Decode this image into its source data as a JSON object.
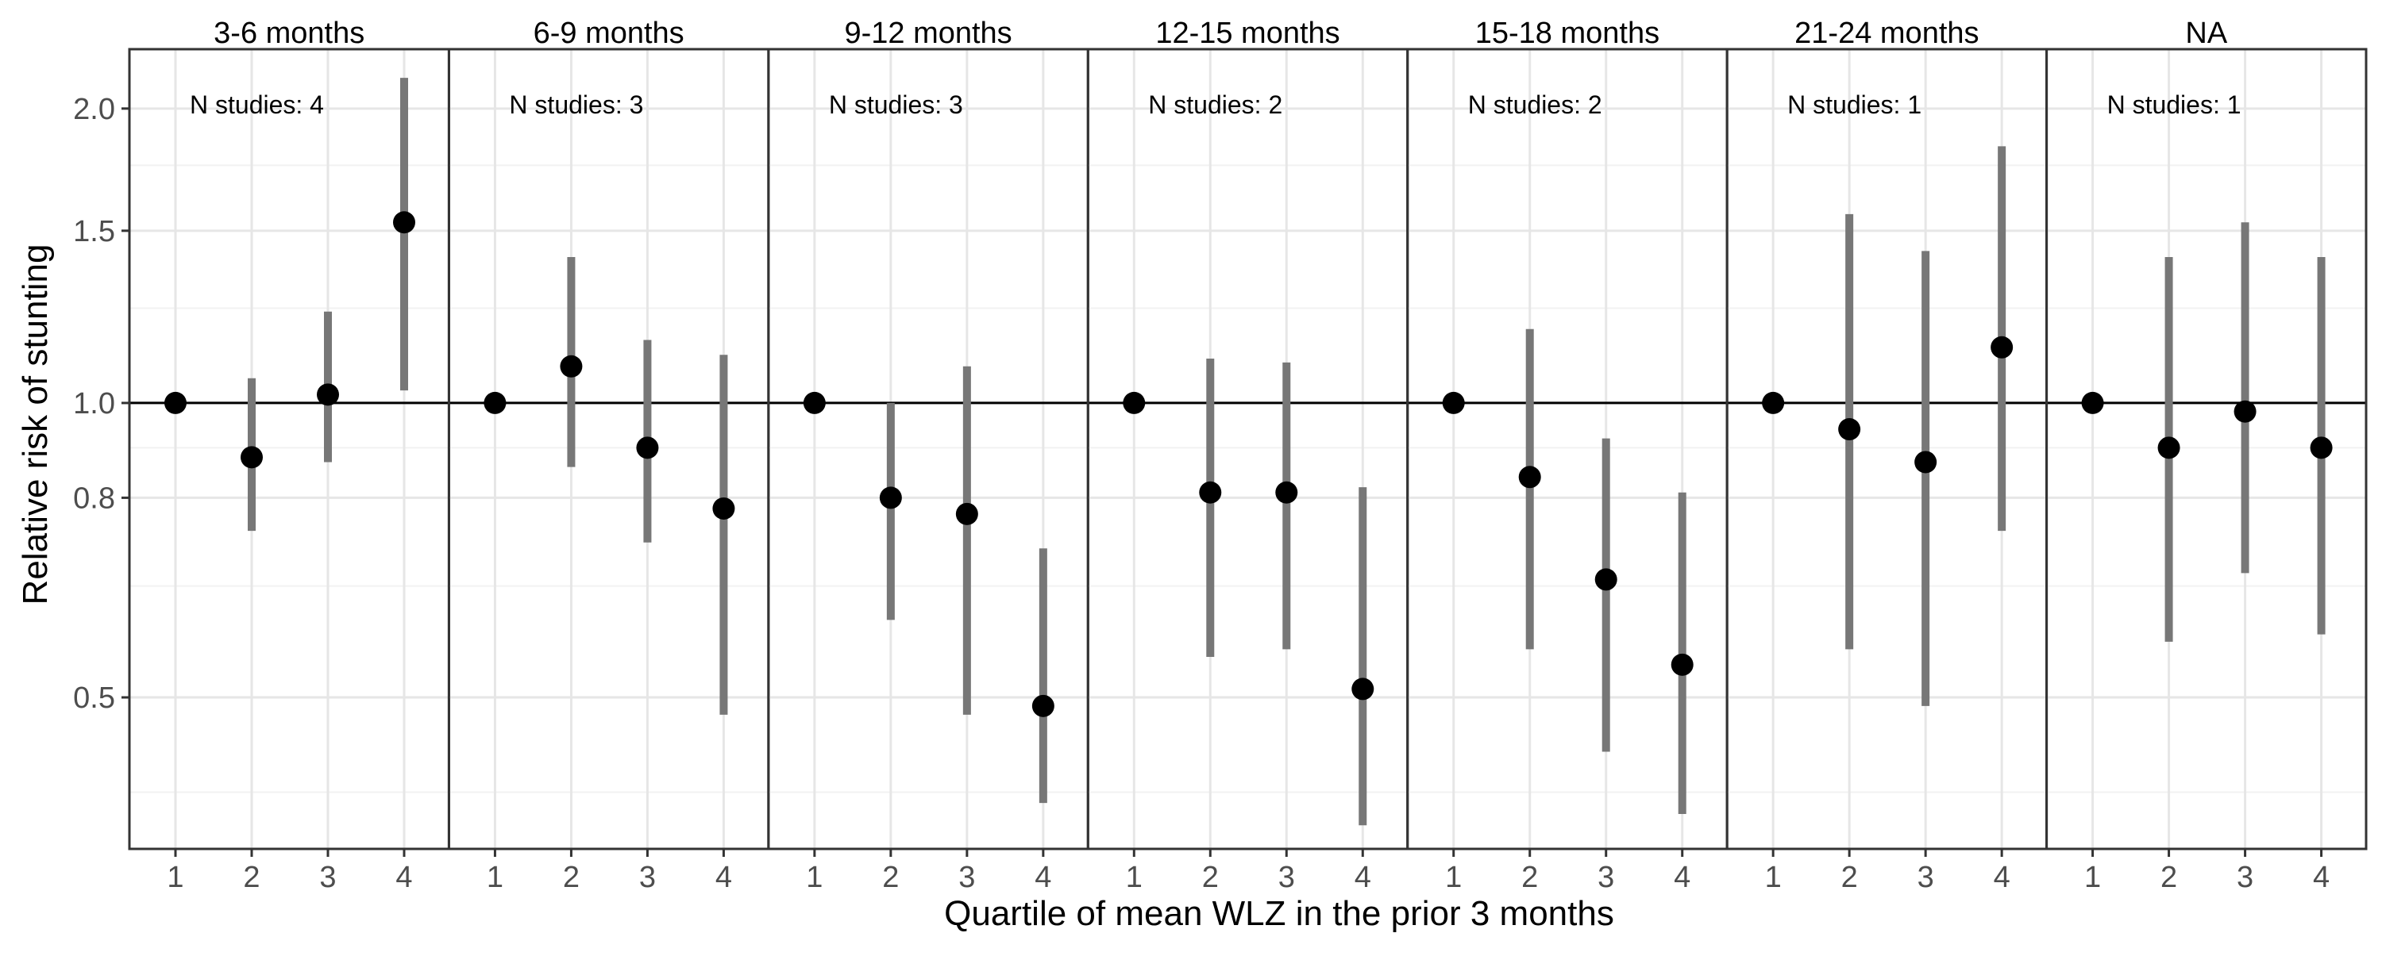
{
  "chart_data": {
    "type": "scatter",
    "subtype": "faceted-point-range",
    "xlabel": "Quartile of mean WLZ in the prior 3 months",
    "ylabel": "Relative risk of stunting",
    "x_categories": [
      "1",
      "2",
      "3",
      "4"
    ],
    "y_scale": "log",
    "ylim": [
      0.35,
      2.3
    ],
    "y_ticks": [
      0.5,
      0.8,
      1.0,
      1.5,
      2.0
    ],
    "y_tick_labels": [
      "0.5",
      "0.8",
      "1.0",
      "1.5",
      "2.0"
    ],
    "y_minor_gridlines": [
      0.4,
      0.65,
      0.9,
      1.25,
      1.75
    ],
    "reference_line": 1.0,
    "grid": true,
    "panels": [
      {
        "label": "3-6 months",
        "annotation": "N studies: 4",
        "points": [
          {
            "x": "1",
            "y": 1.0,
            "lower": null,
            "upper": null
          },
          {
            "x": "2",
            "y": 0.88,
            "lower": 0.74,
            "upper": 1.06
          },
          {
            "x": "3",
            "y": 1.02,
            "lower": 0.87,
            "upper": 1.24
          },
          {
            "x": "4",
            "y": 1.53,
            "lower": 1.03,
            "upper": 2.15
          }
        ]
      },
      {
        "label": "6-9 months",
        "annotation": "N studies: 3",
        "points": [
          {
            "x": "1",
            "y": 1.0,
            "lower": null,
            "upper": null
          },
          {
            "x": "2",
            "y": 1.09,
            "lower": 0.86,
            "upper": 1.41
          },
          {
            "x": "3",
            "y": 0.9,
            "lower": 0.72,
            "upper": 1.16
          },
          {
            "x": "4",
            "y": 0.78,
            "lower": 0.48,
            "upper": 1.12
          }
        ]
      },
      {
        "label": "9-12 months",
        "annotation": "N studies: 3",
        "points": [
          {
            "x": "1",
            "y": 1.0,
            "lower": null,
            "upper": null
          },
          {
            "x": "2",
            "y": 0.8,
            "lower": 0.6,
            "upper": 1.0
          },
          {
            "x": "3",
            "y": 0.77,
            "lower": 0.48,
            "upper": 1.09
          },
          {
            "x": "4",
            "y": 0.49,
            "lower": 0.39,
            "upper": 0.71
          }
        ]
      },
      {
        "label": "12-15 months",
        "annotation": "N studies: 2",
        "points": [
          {
            "x": "1",
            "y": 1.0,
            "lower": null,
            "upper": null
          },
          {
            "x": "2",
            "y": 0.81,
            "lower": 0.55,
            "upper": 1.11
          },
          {
            "x": "3",
            "y": 0.81,
            "lower": 0.56,
            "upper": 1.1
          },
          {
            "x": "4",
            "y": 0.51,
            "lower": 0.37,
            "upper": 0.82
          }
        ]
      },
      {
        "label": "15-18 months",
        "annotation": "N studies: 2",
        "points": [
          {
            "x": "1",
            "y": 1.0,
            "lower": null,
            "upper": null
          },
          {
            "x": "2",
            "y": 0.84,
            "lower": 0.56,
            "upper": 1.19
          },
          {
            "x": "3",
            "y": 0.66,
            "lower": 0.44,
            "upper": 0.92
          },
          {
            "x": "4",
            "y": 0.54,
            "lower": 0.38,
            "upper": 0.81
          }
        ]
      },
      {
        "label": "21-24 months",
        "annotation": "N studies: 1",
        "points": [
          {
            "x": "1",
            "y": 1.0,
            "lower": null,
            "upper": null
          },
          {
            "x": "2",
            "y": 0.94,
            "lower": 0.56,
            "upper": 1.56
          },
          {
            "x": "3",
            "y": 0.87,
            "lower": 0.49,
            "upper": 1.43
          },
          {
            "x": "4",
            "y": 1.14,
            "lower": 0.74,
            "upper": 1.83
          }
        ]
      },
      {
        "label": "NA",
        "annotation": "N studies: 1",
        "points": [
          {
            "x": "1",
            "y": 1.0,
            "lower": null,
            "upper": null
          },
          {
            "x": "2",
            "y": 0.9,
            "lower": 0.57,
            "upper": 1.41
          },
          {
            "x": "3",
            "y": 0.98,
            "lower": 0.67,
            "upper": 1.53
          },
          {
            "x": "4",
            "y": 0.9,
            "lower": 0.58,
            "upper": 1.41
          }
        ]
      }
    ],
    "colors": {
      "point": "#000000",
      "interval": "#777777",
      "reference_line": "#000000",
      "grid_major": "#e6e6e6",
      "grid_minor": "#f2f2f2",
      "panel_border": "#333333",
      "tick_label": "#4d4d4d"
    }
  }
}
